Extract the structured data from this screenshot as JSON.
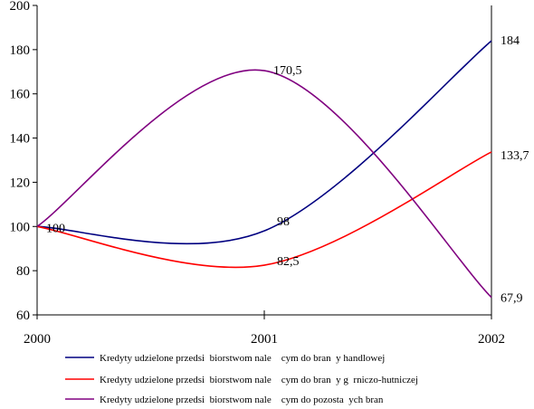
{
  "chart_data": {
    "type": "line",
    "x": [
      2000,
      2001,
      2002
    ],
    "x_tick_labels": [
      "2000",
      "2001",
      "2002"
    ],
    "ylim": [
      60,
      200
    ],
    "y_ticks": [
      60,
      80,
      100,
      120,
      140,
      160,
      180,
      200
    ],
    "y_tick_labels": [
      "60",
      "80",
      "100",
      "120",
      "140",
      "160",
      "180",
      "200"
    ],
    "grid": false,
    "legend_position": "bottom",
    "series": [
      {
        "name": "Kredyty udzielone przedsi  biorstwom nale    cym do bran  y handlowej",
        "color": "#000080",
        "values": [
          100,
          98,
          184
        ],
        "labels": [
          "",
          "98",
          "184"
        ]
      },
      {
        "name": "Kredyty udzielone przedsi  biorstwom nale    cym do bran  y g  rniczo-hutniczej",
        "color": "#ff0000",
        "values": [
          100,
          82.5,
          133.7
        ],
        "labels": [
          "",
          "82,5",
          "133,7"
        ]
      },
      {
        "name": "Kredyty udzielone przedsi  biorstwom nale    cym do pozosta  ych bran",
        "color": "#800080",
        "values": [
          100,
          170.5,
          67.9
        ],
        "labels": [
          "100",
          "170,5",
          "67,9"
        ]
      }
    ]
  }
}
